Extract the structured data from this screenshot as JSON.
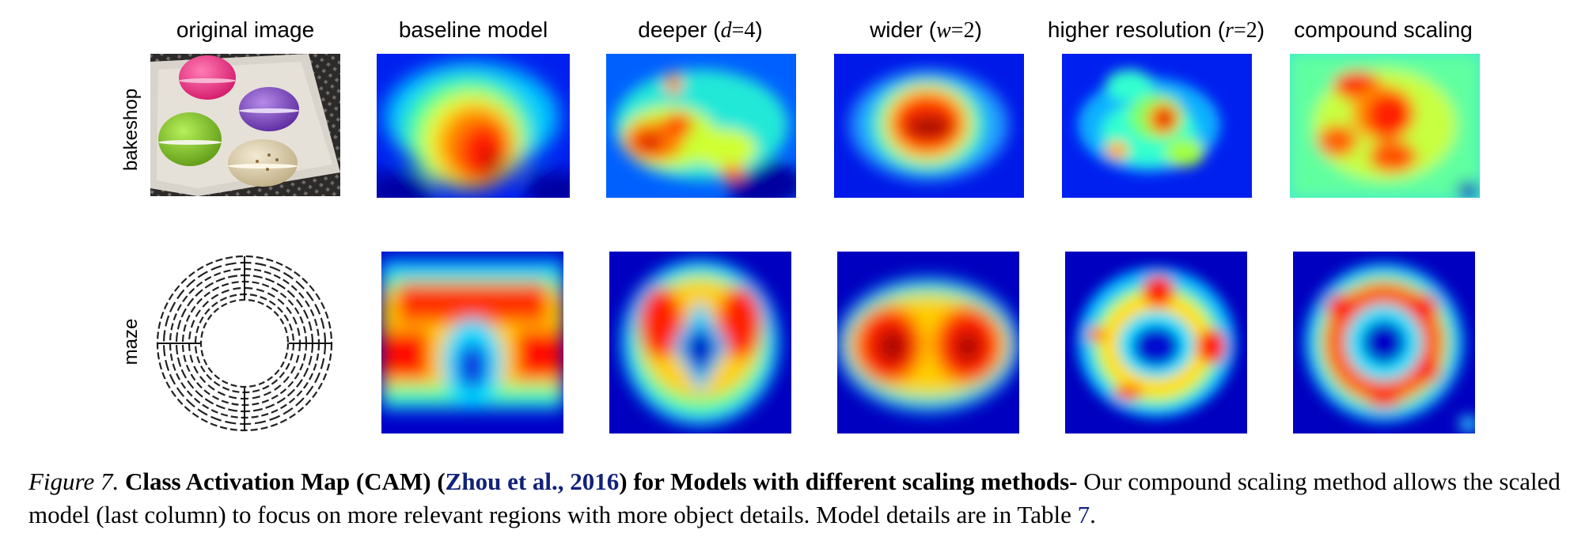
{
  "columns": [
    {
      "label": "original image"
    },
    {
      "label": "baseline model"
    },
    {
      "label_pre": "deeper (",
      "var": "d",
      "eq": "=4",
      "label_post": ")"
    },
    {
      "label_pre": "wider (",
      "var": "w",
      "eq": "=2",
      "label_post": ")"
    },
    {
      "label_pre": "higher resolution (",
      "var": "r",
      "eq": "=2",
      "label_post": ")"
    },
    {
      "label": "compound scaling"
    }
  ],
  "rows": [
    {
      "label": "bakeshop"
    },
    {
      "label": "maze"
    }
  ],
  "caption": {
    "figure": "Figure 7.",
    "title_a": "Class Activation Map (CAM) (",
    "citation": "Zhou et al., 2016",
    "title_b": ") for Models with different scaling methods-",
    "body": " Our compound scaling method allows the scaled model (last column) to focus on more relevant regions with more object details. Model details are in Table ",
    "table_ref": "7",
    "end": "."
  },
  "colors": {
    "jet_low": "#00008f",
    "jet_mid": "#00ffff",
    "jet_high": "#ff0000",
    "citation": "#12227a"
  }
}
